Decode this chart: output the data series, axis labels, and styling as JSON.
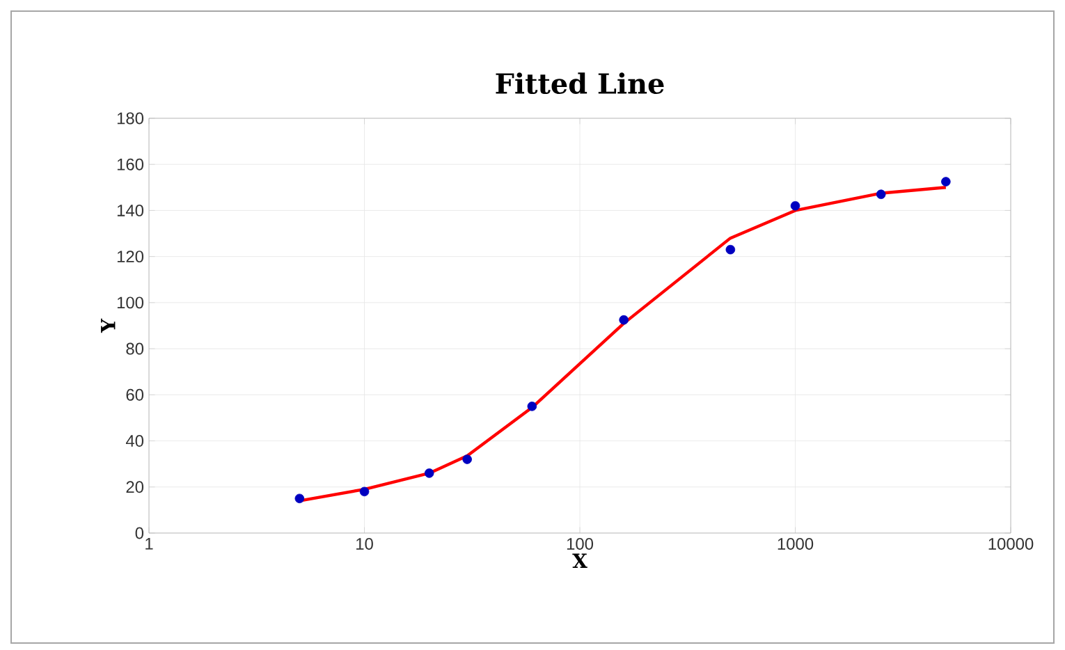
{
  "chart_data": {
    "type": "scatter",
    "title": "Fitted Line",
    "xlabel": "X",
    "ylabel": "Y",
    "log": "x",
    "grid": true,
    "xlim": [
      1,
      10000
    ],
    "xticks": [
      1,
      10,
      100,
      1000,
      10000
    ],
    "ylim": [
      0,
      180
    ],
    "yticks": [
      0,
      20,
      40,
      60,
      80,
      100,
      120,
      140,
      160,
      180
    ],
    "series": [
      {
        "type": "line",
        "marker": "none",
        "color": "#ff0000",
        "x": [
          5,
          10,
          20,
          30,
          60,
          160,
          500,
          1000,
          2500,
          5000
        ],
        "values": [
          14,
          19,
          26,
          33.5,
          54.5,
          91,
          128,
          140,
          147.5,
          150
        ]
      },
      {
        "marker": "circle",
        "color": "#0000c0",
        "x": [
          5,
          10,
          20,
          30,
          60,
          160,
          500,
          1000,
          2500,
          5000
        ],
        "values": [
          15,
          18,
          26,
          32,
          55,
          92.5,
          123,
          142,
          147,
          152.5
        ]
      }
    ]
  }
}
